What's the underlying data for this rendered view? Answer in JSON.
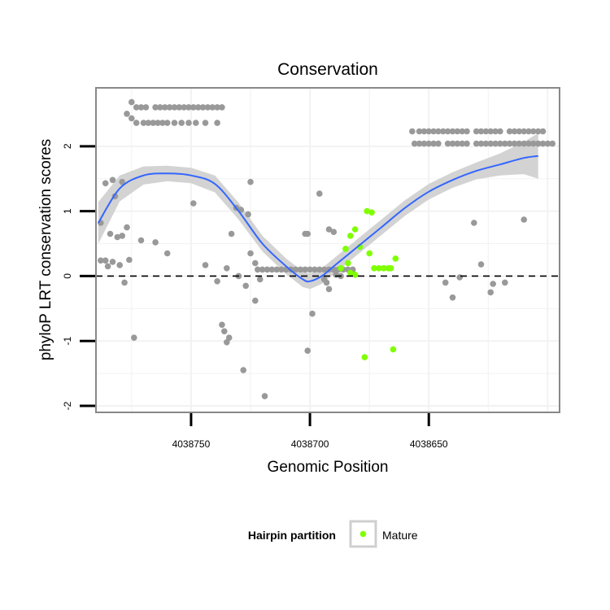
{
  "chart_data": {
    "type": "scatter",
    "title": "Conservation",
    "xlabel": "Genomic Position",
    "ylabel": "phyloP LRT conservation scores",
    "x_reversed": true,
    "xlim": [
      4038790,
      4038595
    ],
    "ylim": [
      -2.1,
      2.9
    ],
    "x_ticks": [
      4038750,
      4038700,
      4038650
    ],
    "x_tick_labels": [
      "4038750",
      "4038700",
      "4038650"
    ],
    "y_ticks": [
      -2,
      -1,
      0,
      1,
      2
    ],
    "y_tick_labels": [
      "-2",
      "-1",
      "0",
      "1",
      "2"
    ],
    "reference_line": {
      "y": 0,
      "style": "dashed"
    },
    "legend": {
      "title": "Hairpin partition",
      "entries": [
        {
          "label": "Mature",
          "color": "#7fff00"
        }
      ],
      "placement": "bottom"
    },
    "colors": {
      "other": "#999999",
      "mature": "#7fff00",
      "smooth": "#3366ff",
      "ribbon": "#d3d3d3",
      "panel_border": "#888888",
      "grid": "#f2f2f2"
    },
    "series": [
      {
        "name": "other",
        "points": [
          [
            4038788,
            0.82
          ],
          [
            4038786,
            1.43
          ],
          [
            4038783,
            1.48
          ],
          [
            4038782,
            1.23
          ],
          [
            4038779,
            1.45
          ],
          [
            4038779,
            0.62
          ],
          [
            4038784,
            0.65
          ],
          [
            4038781,
            0.6
          ],
          [
            4038777,
            0.75
          ],
          [
            4038788,
            0.24
          ],
          [
            4038786,
            0.24
          ],
          [
            4038785,
            0.15
          ],
          [
            4038783,
            0.22
          ],
          [
            4038780,
            0.17
          ],
          [
            4038778,
            -0.1
          ],
          [
            4038776,
            0.25
          ],
          [
            4038771,
            0.55
          ],
          [
            4038765,
            0.52
          ],
          [
            4038760,
            0.35
          ],
          [
            4038774,
            -0.95
          ],
          [
            4038777,
            2.5
          ],
          [
            4038775,
            2.43
          ],
          [
            4038775,
            2.68
          ],
          [
            4038773,
            2.6
          ],
          [
            4038771,
            2.6
          ],
          [
            4038769,
            2.6
          ],
          [
            4038765,
            2.6
          ],
          [
            4038763,
            2.6
          ],
          [
            4038761,
            2.6
          ],
          [
            4038759,
            2.6
          ],
          [
            4038757,
            2.6
          ],
          [
            4038755,
            2.6
          ],
          [
            4038753,
            2.6
          ],
          [
            4038751,
            2.6
          ],
          [
            4038749,
            2.6
          ],
          [
            4038747,
            2.6
          ],
          [
            4038745,
            2.6
          ],
          [
            4038743,
            2.6
          ],
          [
            4038741,
            2.6
          ],
          [
            4038739,
            2.6
          ],
          [
            4038737,
            2.6
          ],
          [
            4038773,
            2.36
          ],
          [
            4038770,
            2.36
          ],
          [
            4038768,
            2.36
          ],
          [
            4038766,
            2.36
          ],
          [
            4038764,
            2.36
          ],
          [
            4038762,
            2.36
          ],
          [
            4038760,
            2.36
          ],
          [
            4038757,
            2.36
          ],
          [
            4038754,
            2.36
          ],
          [
            4038751,
            2.36
          ],
          [
            4038748,
            2.36
          ],
          [
            4038744,
            2.36
          ],
          [
            4038739,
            2.36
          ],
          [
            4038749,
            1.12
          ],
          [
            4038744,
            0.17
          ],
          [
            4038739,
            -0.08
          ],
          [
            4038735,
            0.12
          ],
          [
            4038731,
            1.05
          ],
          [
            4038729,
            1.02
          ],
          [
            4038726,
            0.95
          ],
          [
            4038725,
            1.45
          ],
          [
            4038733,
            0.65
          ],
          [
            4038730,
            0.0
          ],
          [
            4038727,
            -0.15
          ],
          [
            4038725,
            0.35
          ],
          [
            4038723,
            0.2
          ],
          [
            4038721,
            -0.05
          ],
          [
            4038723,
            -0.38
          ],
          [
            4038737,
            -0.75
          ],
          [
            4038736,
            -0.85
          ],
          [
            4038734,
            -0.95
          ],
          [
            4038735,
            -1.02
          ],
          [
            4038728,
            -1.45
          ],
          [
            4038719,
            -1.85
          ],
          [
            4038701,
            -1.15
          ],
          [
            4038699,
            -0.58
          ],
          [
            4038696,
            1.27
          ],
          [
            4038692,
            0.72
          ],
          [
            4038690,
            0.68
          ],
          [
            4038701,
            0.65
          ],
          [
            4038702,
            0.65
          ],
          [
            4038722,
            0.1
          ],
          [
            4038720,
            0.1
          ],
          [
            4038718,
            0.1
          ],
          [
            4038716,
            0.1
          ],
          [
            4038714,
            0.1
          ],
          [
            4038712,
            0.1
          ],
          [
            4038710,
            0.1
          ],
          [
            4038708,
            0.1
          ],
          [
            4038706,
            0.1
          ],
          [
            4038704,
            0.1
          ],
          [
            4038702,
            0.1
          ],
          [
            4038700,
            0.1
          ],
          [
            4038698,
            0.1
          ],
          [
            4038696,
            0.1
          ],
          [
            4038694,
            0.1
          ],
          [
            4038692,
            0.1
          ],
          [
            4038690,
            0.1
          ],
          [
            4038688,
            0.1
          ],
          [
            4038686,
            0.1
          ],
          [
            4038684,
            0.1
          ],
          [
            4038682,
            0.1
          ],
          [
            4038694,
            -0.05
          ],
          [
            4038693,
            -0.1
          ],
          [
            4038692,
            -0.2
          ],
          [
            4038689,
            0.02
          ],
          [
            4038687,
            0.0
          ],
          [
            4038657,
            2.23
          ],
          [
            4038654,
            2.23
          ],
          [
            4038652,
            2.23
          ],
          [
            4038650,
            2.23
          ],
          [
            4038648,
            2.23
          ],
          [
            4038646,
            2.23
          ],
          [
            4038644,
            2.23
          ],
          [
            4038642,
            2.23
          ],
          [
            4038640,
            2.23
          ],
          [
            4038638,
            2.23
          ],
          [
            4038636,
            2.23
          ],
          [
            4038634,
            2.23
          ],
          [
            4038630,
            2.23
          ],
          [
            4038628,
            2.23
          ],
          [
            4038626,
            2.23
          ],
          [
            4038624,
            2.23
          ],
          [
            4038622,
            2.23
          ],
          [
            4038620,
            2.23
          ],
          [
            4038616,
            2.23
          ],
          [
            4038614,
            2.23
          ],
          [
            4038612,
            2.23
          ],
          [
            4038610,
            2.23
          ],
          [
            4038608,
            2.23
          ],
          [
            4038606,
            2.23
          ],
          [
            4038604,
            2.23
          ],
          [
            4038602,
            2.23
          ],
          [
            4038656,
            2.04
          ],
          [
            4038654,
            2.04
          ],
          [
            4038652,
            2.04
          ],
          [
            4038650,
            2.04
          ],
          [
            4038648,
            2.04
          ],
          [
            4038646,
            2.04
          ],
          [
            4038642,
            2.04
          ],
          [
            4038640,
            2.04
          ],
          [
            4038638,
            2.04
          ],
          [
            4038636,
            2.04
          ],
          [
            4038634,
            2.04
          ],
          [
            4038630,
            2.04
          ],
          [
            4038628,
            2.04
          ],
          [
            4038626,
            2.04
          ],
          [
            4038624,
            2.04
          ],
          [
            4038622,
            2.04
          ],
          [
            4038620,
            2.04
          ],
          [
            4038618,
            2.04
          ],
          [
            4038616,
            2.04
          ],
          [
            4038614,
            2.04
          ],
          [
            4038612,
            2.04
          ],
          [
            4038610,
            2.04
          ],
          [
            4038608,
            2.04
          ],
          [
            4038606,
            2.04
          ],
          [
            4038604,
            2.04
          ],
          [
            4038602,
            2.04
          ],
          [
            4038600,
            2.04
          ],
          [
            4038598,
            2.04
          ],
          [
            4038643,
            -0.1
          ],
          [
            4038640,
            -0.33
          ],
          [
            4038637,
            -0.02
          ],
          [
            4038631,
            0.82
          ],
          [
            4038628,
            0.18
          ],
          [
            4038624,
            -0.25
          ],
          [
            4038623,
            -0.12
          ],
          [
            4038618,
            -0.1
          ],
          [
            4038610,
            0.87
          ]
        ]
      },
      {
        "name": "Mature",
        "points": [
          [
            4038687,
            0.12
          ],
          [
            4038685,
            0.42
          ],
          [
            4038684,
            0.2
          ],
          [
            4038683,
            0.62
          ],
          [
            4038681,
            0.72
          ],
          [
            4038679,
            0.45
          ],
          [
            4038676,
            1.0
          ],
          [
            4038674,
            0.98
          ],
          [
            4038683,
            0.05
          ],
          [
            4038681,
            0.02
          ],
          [
            4038675,
            0.35
          ],
          [
            4038673,
            0.12
          ],
          [
            4038671,
            0.12
          ],
          [
            4038669,
            0.12
          ],
          [
            4038667,
            0.12
          ],
          [
            4038666,
            0.12
          ],
          [
            4038664,
            0.27
          ],
          [
            4038677,
            -1.25
          ],
          [
            4038665,
            -1.13
          ]
        ]
      }
    ],
    "smooth_fit": {
      "x": [
        4038789,
        4038780,
        4038770,
        4038760,
        4038750,
        4038740,
        4038730,
        4038720,
        4038710,
        4038703,
        4038700,
        4038695,
        4038690,
        4038680,
        4038670,
        4038660,
        4038650,
        4038640,
        4038630,
        4038620,
        4038610,
        4038604
      ],
      "y": [
        0.82,
        1.35,
        1.55,
        1.58,
        1.55,
        1.42,
        1.0,
        0.5,
        0.15,
        -0.05,
        -0.08,
        0.0,
        0.15,
        0.45,
        0.75,
        1.05,
        1.3,
        1.48,
        1.62,
        1.72,
        1.82,
        1.85
      ],
      "se": [
        0.32,
        0.2,
        0.14,
        0.12,
        0.12,
        0.13,
        0.13,
        0.12,
        0.12,
        0.12,
        0.12,
        0.12,
        0.12,
        0.12,
        0.12,
        0.12,
        0.12,
        0.12,
        0.13,
        0.17,
        0.25,
        0.35
      ]
    }
  }
}
